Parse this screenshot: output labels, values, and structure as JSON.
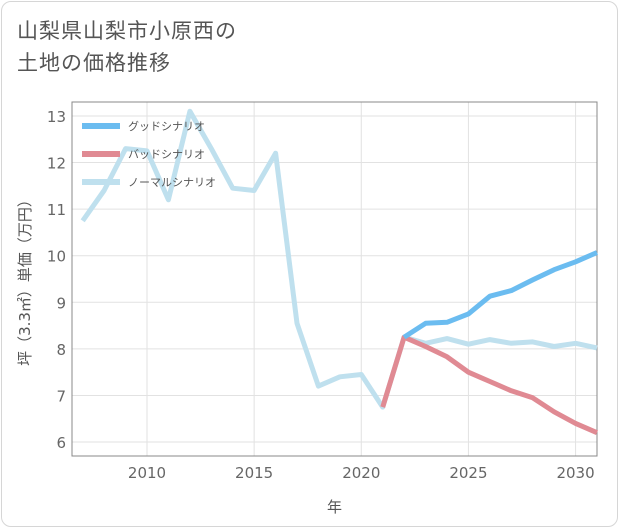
{
  "title_line1": "山梨県山梨市小原西の",
  "title_line2": "土地の価格推移",
  "chart_data": {
    "type": "line",
    "xlabel": "年",
    "ylabel": "坪（3.3㎡）単価（万円）",
    "xlim": [
      2006.5,
      2031
    ],
    "ylim": [
      5.7,
      13.3
    ],
    "x_ticks": [
      2010,
      2015,
      2020,
      2025,
      2030
    ],
    "y_ticks": [
      6,
      7,
      8,
      9,
      10,
      11,
      12,
      13
    ],
    "grid": true,
    "legend_position": "top-left",
    "series": [
      {
        "name": "グッドシナリオ",
        "color": "#6bbcf0",
        "x": [
          2022,
          2023,
          2024,
          2025,
          2026,
          2027,
          2028,
          2029,
          2030,
          2031
        ],
        "y": [
          8.25,
          8.55,
          8.57,
          8.75,
          9.13,
          9.25,
          9.48,
          9.7,
          9.87,
          10.07
        ]
      },
      {
        "name": "バッドシナリオ",
        "color": "#e08a93",
        "x": [
          2021,
          2022,
          2023,
          2024,
          2025,
          2026,
          2027,
          2028,
          2029,
          2030,
          2031
        ],
        "y": [
          6.75,
          8.25,
          8.05,
          7.83,
          7.5,
          7.3,
          7.1,
          6.95,
          6.65,
          6.4,
          6.2
        ]
      },
      {
        "name": "ノーマルシナリオ",
        "color": "#bfe0ee",
        "x": [
          2007,
          2008,
          2009,
          2010,
          2011,
          2012,
          2013,
          2014,
          2015,
          2016,
          2017,
          2018,
          2019,
          2020,
          2021,
          2022,
          2023,
          2024,
          2025,
          2026,
          2027,
          2028,
          2029,
          2030,
          2031
        ],
        "y": [
          10.75,
          11.4,
          12.3,
          12.25,
          11.2,
          13.1,
          12.3,
          11.45,
          11.4,
          12.2,
          8.55,
          7.2,
          7.4,
          7.45,
          6.75,
          8.25,
          8.12,
          8.22,
          8.1,
          8.2,
          8.12,
          8.15,
          8.05,
          8.12,
          8.02
        ]
      }
    ]
  }
}
